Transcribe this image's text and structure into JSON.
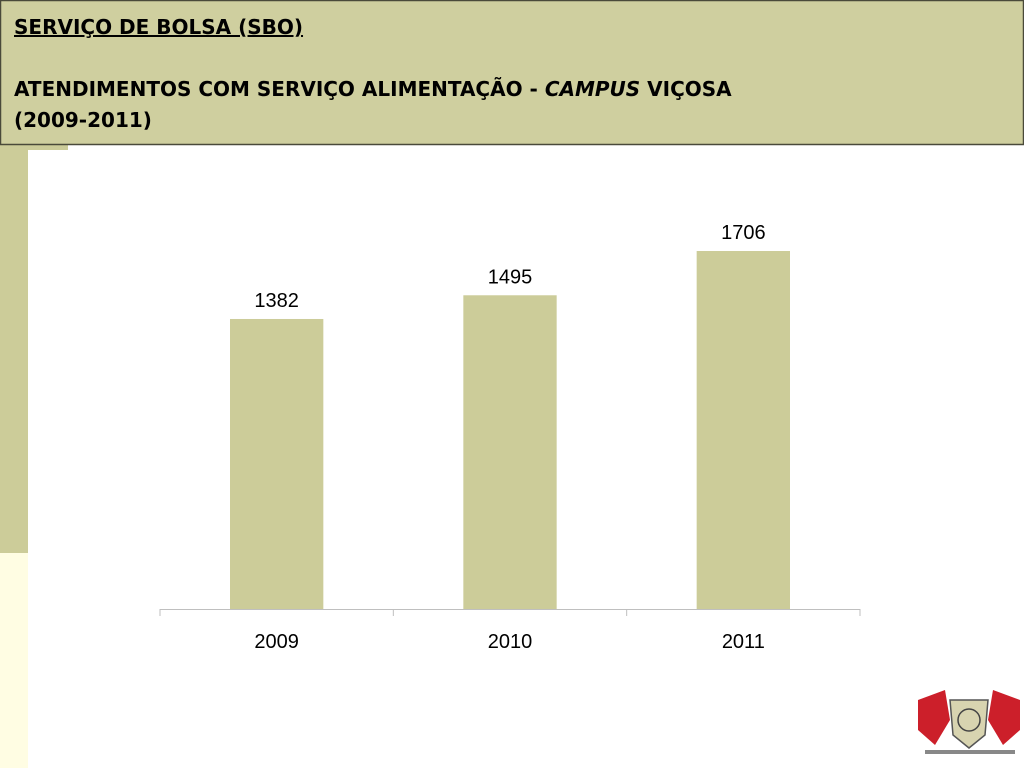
{
  "chart_data": {
    "type": "bar",
    "header": "SERVIÇO DE BOLSA (SBO)",
    "title_prefix": "ATENDIMENTOS COM SERVIÇO ALIMENTAÇÃO - ",
    "title_emphasis": "CAMPUS",
    "title_suffix": " VIÇOSA",
    "subtitle": "(2009-2011)",
    "categories": [
      "2009",
      "2010",
      "2011"
    ],
    "values": [
      1382,
      1495,
      1706
    ],
    "color": "#cccc99"
  }
}
